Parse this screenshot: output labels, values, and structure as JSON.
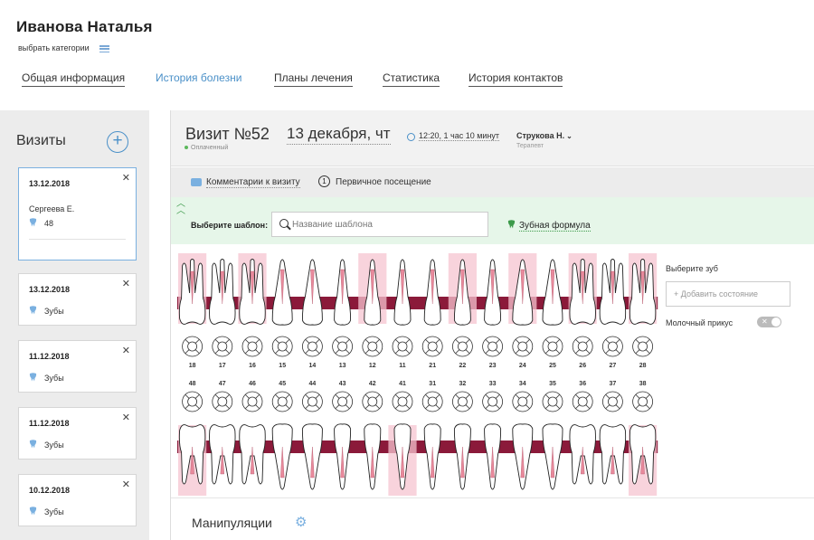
{
  "patient": {
    "name": "Иванова Наталья",
    "choose_category": "выбрать категории"
  },
  "nav": {
    "tabs": [
      {
        "label": "Общая информация",
        "active": false
      },
      {
        "label": "История болезни",
        "active": true
      },
      {
        "label": "Планы лечения",
        "active": false
      },
      {
        "label": "Статистика",
        "active": false
      },
      {
        "label": "История контактов",
        "active": false
      }
    ]
  },
  "sidebar": {
    "title": "Визиты",
    "add_icon": "plus-circle-icon",
    "visits": [
      {
        "date": "13.12.2018",
        "doctor": "Сергеева Е.",
        "text": "48",
        "selected": true
      },
      {
        "date": "13.12.2018",
        "text": "Зубы",
        "selected": false
      },
      {
        "date": "11.12.2018",
        "text": "Зубы",
        "selected": false
      },
      {
        "date": "11.12.2018",
        "text": "Зубы",
        "selected": false
      },
      {
        "date": "10.12.2018",
        "text": "Зубы",
        "selected": false
      }
    ]
  },
  "visit": {
    "number": "Визит №52",
    "status": "Оплаченный",
    "date": "13 декабря, чт",
    "time": "12:20, 1 час 10 минут",
    "doctor": "Струкова Н.",
    "doctor_role": "Терапевт"
  },
  "comments": {
    "link": "Комментарии к визиту",
    "first_visit_num": "1",
    "first_visit": "Первичное посещение"
  },
  "template": {
    "label": "Выберите шаблон:",
    "placeholder": "Название шаблона",
    "formula_link": "Зубная формула"
  },
  "teeth": {
    "upper": [
      "18",
      "17",
      "16",
      "15",
      "14",
      "13",
      "12",
      "11",
      "21",
      "22",
      "23",
      "24",
      "25",
      "26",
      "27",
      "28"
    ],
    "lower": [
      "48",
      "47",
      "46",
      "45",
      "44",
      "43",
      "42",
      "41",
      "31",
      "32",
      "33",
      "34",
      "35",
      "36",
      "37",
      "38"
    ],
    "highlighted_upper": [
      true,
      false,
      true,
      false,
      false,
      false,
      true,
      false,
      false,
      true,
      false,
      true,
      false,
      true,
      false,
      true
    ],
    "highlighted_lower": [
      true,
      false,
      false,
      false,
      false,
      false,
      false,
      true,
      false,
      false,
      false,
      false,
      false,
      false,
      false,
      true
    ]
  },
  "right_panel": {
    "choose_tooth": "Выберите зуб",
    "add_state": "+ Добавить состояние",
    "milk_bite": "Молочный прикус"
  },
  "manipulations": {
    "title": "Манипуляции"
  },
  "colors": {
    "accent": "#4a90c8",
    "gum": "#8b1a3a",
    "tooth_highlight": "#f5c4d0",
    "green_bar": "#e6f6e9"
  }
}
